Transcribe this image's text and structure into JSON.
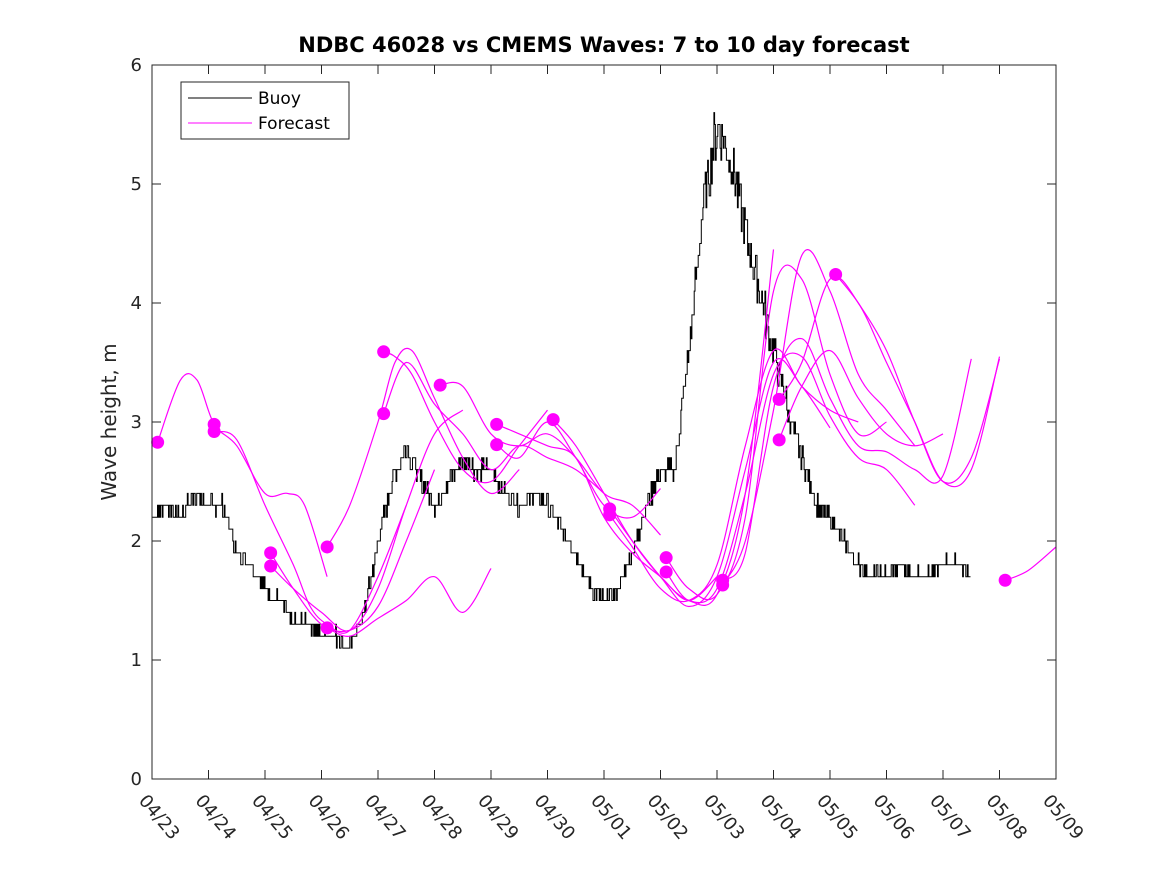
{
  "chart_data": {
    "type": "line",
    "title": "NDBC 46028 vs CMEMS Waves: 7 to 10 day forecast",
    "ylabel": "Wave height, m",
    "xlabel": "",
    "x_ticks": [
      "04/23",
      "04/24",
      "04/25",
      "04/26",
      "04/27",
      "04/28",
      "04/29",
      "04/30",
      "05/01",
      "05/02",
      "05/03",
      "05/04",
      "05/05",
      "05/06",
      "05/07",
      "05/08",
      "05/09"
    ],
    "y_ticks": [
      "0",
      "1",
      "2",
      "3",
      "4",
      "5",
      "6"
    ],
    "xlim": [
      "04/23",
      "05/09"
    ],
    "ylim": [
      0,
      6
    ],
    "legend_position": "top-left",
    "grid": false,
    "colors": {
      "buoy": "#000000",
      "forecast": "#ff00ff"
    },
    "buoy": {
      "name": "Buoy",
      "x_days_from_04_23": [
        0,
        0.25,
        0.5,
        0.75,
        1.0,
        1.25,
        1.5,
        1.75,
        2.0,
        2.25,
        2.5,
        2.75,
        3.0,
        3.25,
        3.5,
        3.75,
        4.0,
        4.25,
        4.5,
        4.75,
        5.0,
        5.25,
        5.5,
        5.75,
        6.0,
        6.25,
        6.5,
        6.75,
        7.0,
        7.25,
        7.5,
        7.75,
        8.0,
        8.25,
        8.5,
        8.75,
        9.0,
        9.25,
        9.5,
        9.75,
        10.0,
        10.25,
        10.5,
        10.75,
        11.0,
        11.25,
        11.5,
        11.75,
        12.0,
        12.25,
        12.5,
        12.75,
        13.0,
        13.25,
        13.5,
        13.75,
        14.0,
        14.25,
        14.5,
        14.75,
        15.0,
        15.25,
        15.5,
        15.75,
        16.0
      ],
      "values": [
        2.2,
        2.3,
        2.2,
        2.4,
        2.3,
        2.3,
        1.9,
        1.8,
        1.6,
        1.5,
        1.3,
        1.3,
        1.2,
        1.2,
        1.1,
        1.4,
        2.0,
        2.5,
        2.8,
        2.5,
        2.3,
        2.5,
        2.7,
        2.6,
        2.6,
        2.4,
        2.3,
        2.4,
        2.3,
        2.1,
        1.9,
        1.6,
        1.5,
        1.6,
        1.9,
        2.3,
        2.6,
        2.6,
        3.6,
        4.8,
        5.5,
        5.2,
        4.6,
        4.1,
        3.6,
        3.1,
        2.7,
        2.3,
        2.2,
        2.0,
        1.8,
        1.7,
        1.7,
        1.8,
        1.7,
        1.7,
        1.8,
        1.8,
        1.7,
        null,
        null,
        null,
        null,
        null,
        null
      ]
    },
    "forecast": {
      "name": "Forecast",
      "series": [
        {
          "x_days_from_04_23": [
            0.1,
            0.5,
            0.8,
            1.1,
            1.5,
            2.0,
            2.4,
            2.7,
            3.1
          ],
          "values": [
            2.83,
            3.35,
            3.35,
            2.98,
            2.8,
            2.4,
            2.4,
            2.3,
            1.7
          ]
        },
        {
          "x_days_from_04_23": [
            1.1,
            1.5,
            2.0,
            2.5,
            2.8,
            3.1,
            3.5,
            4.0,
            4.5
          ],
          "values": [
            2.92,
            2.85,
            2.3,
            1.8,
            1.45,
            1.3,
            1.25,
            1.7,
            2.3
          ]
        },
        {
          "x_days_from_04_23": [
            2.1,
            2.5,
            3.0,
            3.5,
            4.0,
            4.5,
            5.0
          ],
          "values": [
            1.9,
            1.6,
            1.3,
            1.25,
            1.45,
            2.0,
            2.6
          ]
        },
        {
          "x_days_from_04_23": [
            2.1,
            2.5,
            3.0,
            3.5,
            4.0,
            4.5,
            5.0,
            5.5
          ],
          "values": [
            1.79,
            1.6,
            1.4,
            1.25,
            1.6,
            2.3,
            2.9,
            3.1
          ]
        },
        {
          "x_days_from_04_23": [
            3.1,
            3.5,
            4.0,
            4.5,
            5.0,
            5.5,
            6.0
          ],
          "values": [
            1.27,
            1.2,
            1.35,
            1.5,
            1.7,
            1.4,
            1.77
          ]
        },
        {
          "x_days_from_04_23": [
            3.1,
            3.5,
            4.0,
            4.3,
            4.6,
            5.0,
            5.5,
            6.0,
            6.5
          ],
          "values": [
            1.95,
            2.3,
            3.0,
            3.5,
            3.6,
            3.2,
            2.7,
            2.4,
            2.6
          ]
        },
        {
          "x_days_from_04_23": [
            4.1,
            4.3,
            4.6,
            5.0,
            5.5,
            6.0,
            6.5,
            7.0
          ],
          "values": [
            3.59,
            3.55,
            3.4,
            3.0,
            2.6,
            2.5,
            2.8,
            3.1
          ]
        },
        {
          "x_days_from_04_23": [
            4.1,
            4.5,
            5.0,
            5.5,
            6.0,
            6.5,
            7.0,
            7.5,
            8.0
          ],
          "values": [
            3.07,
            3.5,
            3.15,
            2.9,
            2.6,
            2.8,
            2.7,
            2.6,
            2.4
          ]
        },
        {
          "x_days_from_04_23": [
            5.1,
            5.5,
            6.0,
            6.5,
            7.0,
            7.5,
            8.0,
            8.5,
            9.0
          ],
          "values": [
            3.31,
            3.3,
            2.9,
            2.8,
            2.9,
            2.7,
            2.4,
            2.3,
            2.05
          ]
        },
        {
          "x_days_from_04_23": [
            6.1,
            6.5,
            7.0,
            7.5,
            8.0,
            8.5,
            9.0,
            9.5,
            10.0
          ],
          "values": [
            2.98,
            2.9,
            2.8,
            2.7,
            2.2,
            1.9,
            1.7,
            1.5,
            1.7
          ]
        },
        {
          "x_days_from_04_23": [
            6.1,
            6.5,
            7.0,
            7.5,
            8.0,
            8.5,
            9.0
          ],
          "values": [
            2.81,
            2.7,
            3.0,
            2.7,
            2.3,
            2.2,
            2.44
          ]
        },
        {
          "x_days_from_04_23": [
            7.1,
            7.5,
            8.0,
            8.5,
            9.0,
            9.5,
            10.0,
            10.5,
            11.0
          ],
          "values": [
            3.02,
            2.8,
            2.4,
            2.0,
            1.7,
            1.5,
            1.55,
            2.4,
            4.45
          ]
        },
        {
          "x_days_from_04_23": [
            8.1,
            8.5,
            9.0,
            9.5,
            10.0,
            10.5,
            11.0,
            11.5,
            12.0
          ],
          "values": [
            2.27,
            2.0,
            1.7,
            1.45,
            1.7,
            2.6,
            3.5,
            3.3,
            2.95
          ]
        },
        {
          "x_days_from_04_23": [
            8.1,
            8.5,
            9.0,
            9.5,
            10.0,
            10.5,
            11.0,
            11.5,
            12.0,
            12.5
          ],
          "values": [
            2.22,
            1.95,
            1.6,
            1.5,
            1.8,
            2.8,
            3.6,
            3.3,
            3.1,
            3.0
          ]
        },
        {
          "x_days_from_04_23": [
            9.1,
            9.5,
            10.0,
            10.5,
            11.0,
            11.5,
            12.0,
            12.5,
            13.0
          ],
          "values": [
            1.86,
            1.6,
            1.55,
            2.2,
            4.1,
            4.2,
            3.4,
            2.9,
            3.0
          ]
        },
        {
          "x_days_from_04_23": [
            9.1,
            9.5,
            10.0,
            10.5,
            11.0,
            11.5,
            12.0,
            12.5,
            13.0,
            13.5
          ],
          "values": [
            1.74,
            1.5,
            1.6,
            2.4,
            3.4,
            3.55,
            3.05,
            2.7,
            2.6,
            2.3
          ]
        },
        {
          "x_days_from_04_23": [
            10.1,
            10.5,
            11.0,
            11.5,
            12.0,
            12.5,
            13.0,
            13.5
          ],
          "values": [
            1.63,
            2.0,
            3.1,
            4.4,
            4.1,
            3.4,
            3.1,
            2.8
          ]
        },
        {
          "x_days_from_04_23": [
            10.1,
            10.5,
            11.0,
            11.5,
            12.0,
            12.5,
            13.0,
            13.5,
            14.0,
            14.5
          ],
          "values": [
            1.67,
            1.9,
            3.3,
            3.7,
            3.2,
            2.8,
            2.75,
            2.6,
            2.55,
            3.53
          ]
        },
        {
          "x_days_from_04_23": [
            11.1,
            11.5,
            12.0,
            12.5,
            13.0,
            13.5,
            14.0,
            14.5,
            15.0
          ],
          "values": [
            3.19,
            3.5,
            4.2,
            4.0,
            3.5,
            3.0,
            2.5,
            2.6,
            3.55
          ]
        },
        {
          "x_days_from_04_23": [
            11.1,
            11.5,
            12.0,
            12.5,
            13.0,
            13.5,
            14.0
          ],
          "values": [
            2.85,
            3.3,
            3.6,
            3.2,
            2.9,
            2.8,
            2.9
          ]
        },
        {
          "x_days_from_04_23": [
            12.1,
            12.5,
            13.0,
            13.5,
            14.0,
            14.5,
            15.0
          ],
          "values": [
            4.24,
            4.0,
            3.6,
            3.0,
            2.5,
            2.7,
            3.53
          ]
        },
        {
          "x_days_from_04_23": [
            15.1,
            15.5,
            16.0
          ],
          "values": [
            1.67,
            1.75,
            1.95
          ]
        }
      ]
    },
    "markers": {
      "x_days_from_04_23": [
        0.1,
        1.1,
        1.1,
        2.1,
        2.1,
        3.1,
        3.1,
        4.1,
        4.1,
        5.1,
        6.1,
        6.1,
        7.1,
        8.1,
        8.1,
        9.1,
        9.1,
        10.1,
        10.1,
        11.1,
        11.1,
        12.1,
        15.1
      ],
      "values": [
        2.83,
        2.98,
        2.92,
        1.9,
        1.79,
        1.95,
        1.27,
        3.59,
        3.07,
        3.31,
        2.98,
        2.81,
        3.02,
        2.27,
        2.22,
        1.86,
        1.74,
        1.63,
        1.67,
        3.19,
        2.85,
        4.24,
        1.67
      ]
    },
    "legend": [
      "Buoy",
      "Forecast"
    ]
  }
}
